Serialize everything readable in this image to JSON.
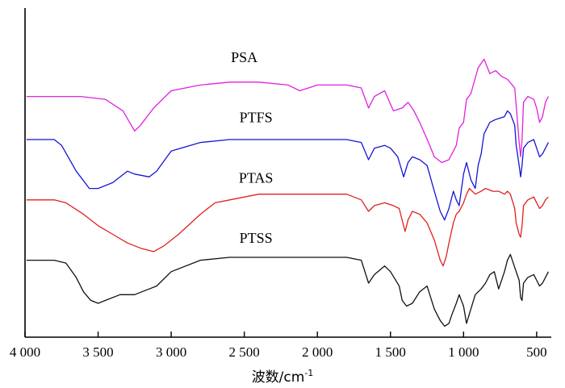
{
  "chart_data": {
    "type": "line",
    "xlabel": "波数/cm",
    "xlabel_sup": "-1",
    "ylabel": "",
    "xlim": [
      4000,
      400
    ],
    "x_reversed": true,
    "y_ticks_shown": false,
    "grid": false,
    "ticks": [
      {
        "value": 4000,
        "label": "4 000"
      },
      {
        "value": 3500,
        "label": "3 500"
      },
      {
        "value": 3000,
        "label": "3 000"
      },
      {
        "value": 2500,
        "label": "2 500"
      },
      {
        "value": 2000,
        "label": "2 000"
      },
      {
        "value": 1500,
        "label": "1 500"
      },
      {
        "value": 1000,
        "label": "1 000"
      },
      {
        "value": 500,
        "label": "500"
      }
    ],
    "series": [
      {
        "name": "PSA",
        "color": "#e020e0",
        "label_x": 2500,
        "label_level": 93,
        "x": [
          3990,
          3800,
          3620,
          3450,
          3330,
          3250,
          3210,
          3120,
          3000,
          2800,
          2600,
          2400,
          2200,
          2120,
          2000,
          1800,
          1700,
          1650,
          1610,
          1540,
          1480,
          1420,
          1380,
          1340,
          1300,
          1240,
          1200,
          1150,
          1100,
          1050,
          1030,
          1000,
          980,
          950,
          900,
          860,
          820,
          780,
          740,
          700,
          650,
          640,
          620,
          610,
          600,
          590,
          560,
          520,
          500,
          480,
          460,
          440,
          420
        ],
        "y": [
          81,
          81,
          81,
          80,
          76,
          69,
          71,
          77,
          83,
          85,
          86,
          86,
          85,
          83,
          85,
          85,
          84,
          77,
          81,
          83,
          76,
          77,
          79,
          76,
          72,
          65,
          60,
          58,
          59,
          64,
          70,
          72,
          80,
          82,
          91,
          94,
          89,
          90,
          88,
          87,
          84,
          78,
          65,
          60,
          66,
          79,
          81,
          80,
          77,
          72,
          74,
          79,
          81
        ]
      },
      {
        "name": "PTFS",
        "color": "#1515d8",
        "label_x": 2420,
        "label_level": 72,
        "x": [
          3990,
          3800,
          3750,
          3650,
          3560,
          3500,
          3400,
          3300,
          3250,
          3150,
          3100,
          3000,
          2800,
          2600,
          2400,
          2200,
          2000,
          1800,
          1700,
          1650,
          1610,
          1540,
          1500,
          1450,
          1410,
          1380,
          1350,
          1300,
          1250,
          1200,
          1160,
          1130,
          1100,
          1070,
          1050,
          1030,
          1000,
          980,
          950,
          920,
          900,
          880,
          860,
          820,
          780,
          720,
          700,
          680,
          650,
          640,
          620,
          610,
          600,
          590,
          560,
          520,
          500,
          480,
          460,
          440,
          420
        ],
        "y": [
          66,
          66,
          64,
          55,
          49,
          49,
          51,
          55,
          54,
          53,
          55,
          62,
          65,
          66,
          66,
          66,
          66,
          66,
          65,
          59,
          63,
          64,
          63,
          60,
          53,
          58,
          60,
          59,
          57,
          48,
          41,
          38,
          42,
          48,
          45,
          43,
          54,
          58,
          52,
          49,
          57,
          61,
          68,
          72,
          73,
          74,
          76,
          75,
          71,
          64,
          57,
          53,
          57,
          63,
          65,
          66,
          63,
          60,
          61,
          63,
          65
        ]
      },
      {
        "name": "PTAS",
        "color": "#e02020",
        "label_x": 2420,
        "label_level": 51,
        "x": [
          3990,
          3800,
          3720,
          3600,
          3500,
          3400,
          3300,
          3200,
          3120,
          3050,
          2950,
          2800,
          2700,
          2600,
          2400,
          2200,
          2000,
          1800,
          1700,
          1650,
          1610,
          1540,
          1480,
          1440,
          1400,
          1380,
          1350,
          1300,
          1250,
          1200,
          1160,
          1140,
          1120,
          1100,
          1070,
          1050,
          1030,
          1000,
          980,
          960,
          920,
          880,
          850,
          800,
          760,
          720,
          700,
          680,
          650,
          640,
          620,
          610,
          600,
          590,
          560,
          520,
          500,
          480,
          460,
          440,
          420
        ],
        "y": [
          45,
          45,
          44,
          40,
          36,
          33,
          30,
          28,
          27,
          29,
          33,
          40,
          44,
          45,
          47,
          47,
          47,
          47,
          45,
          41,
          43,
          44,
          43,
          42,
          34,
          38,
          41,
          40,
          37,
          31,
          24,
          22,
          25,
          30,
          37,
          40,
          41,
          44,
          47,
          49,
          47,
          48,
          49,
          48,
          48,
          47,
          48,
          47,
          42,
          37,
          33,
          32,
          36,
          43,
          45,
          46,
          44,
          42,
          43,
          45,
          46
        ]
      },
      {
        "name": "PTSS",
        "color": "#111111",
        "label_x": 2420,
        "label_level": 30,
        "x": [
          3990,
          3800,
          3720,
          3650,
          3600,
          3550,
          3500,
          3450,
          3350,
          3250,
          3200,
          3150,
          3100,
          3000,
          2800,
          2600,
          2400,
          2200,
          2000,
          1800,
          1700,
          1650,
          1610,
          1540,
          1500,
          1440,
          1420,
          1390,
          1350,
          1300,
          1250,
          1200,
          1180,
          1160,
          1130,
          1100,
          1080,
          1050,
          1030,
          1000,
          980,
          950,
          920,
          880,
          850,
          820,
          790,
          760,
          720,
          700,
          680,
          660,
          640,
          620,
          610,
          600,
          590,
          560,
          520,
          500,
          480,
          460,
          440,
          420
        ],
        "y": [
          24,
          24,
          23,
          18,
          13,
          10,
          9,
          10,
          12,
          12,
          13,
          14,
          15,
          20,
          24,
          25,
          25,
          25,
          25,
          25,
          24,
          16,
          19,
          22,
          20,
          15,
          10,
          8,
          9,
          13,
          15,
          7,
          5,
          3,
          1,
          2,
          5,
          9,
          12,
          8,
          2,
          7,
          12,
          14,
          16,
          19,
          20,
          14,
          20,
          24,
          26,
          23,
          20,
          17,
          11,
          10,
          16,
          18,
          19,
          17,
          15,
          16,
          18,
          20
        ]
      }
    ]
  }
}
